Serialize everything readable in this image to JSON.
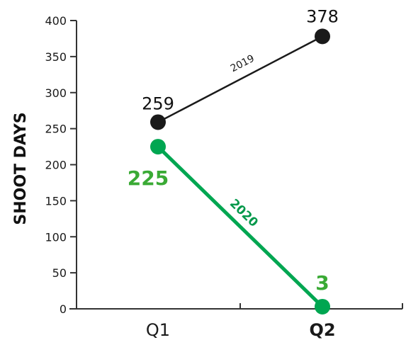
{
  "chart_data": {
    "type": "line",
    "categories": [
      "Q1",
      "Q2"
    ],
    "ylabel": "SHOOT DAYS",
    "xlabel": "",
    "ylim": [
      0,
      400
    ],
    "yticks": [
      0,
      50,
      100,
      150,
      200,
      250,
      300,
      350,
      400
    ],
    "grid": false,
    "series": [
      {
        "name": "2019",
        "values": [
          259,
          378
        ],
        "data_labels": [
          "259",
          "378"
        ],
        "color": "#1a1a1a"
      },
      {
        "name": "2020",
        "values": [
          225,
          3
        ],
        "data_labels": [
          "225",
          "3"
        ],
        "color": "#00a651"
      }
    ]
  }
}
